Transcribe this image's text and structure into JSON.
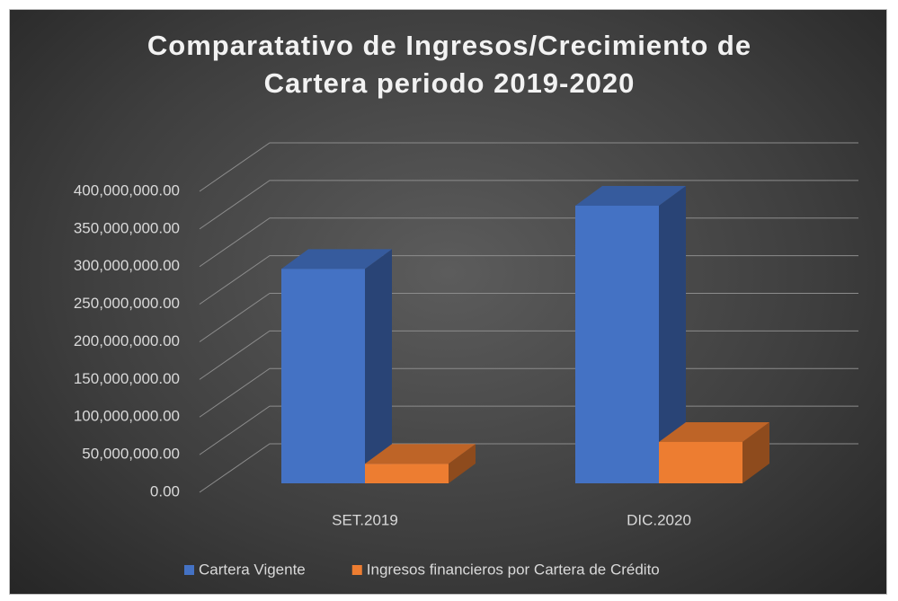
{
  "chart_data": {
    "type": "bar3d",
    "title": "Comparatativo de Ingresos/Crecimiento de Cartera periodo 2019-2020",
    "categories": [
      "SET.2019",
      "DIC.2020"
    ],
    "series": [
      {
        "name": "Cartera Vigente",
        "color": "#4472c4",
        "values": [
          285000000,
          369000000
        ]
      },
      {
        "name": "Ingresos financieros por Cartera de Crédito",
        "color": "#ed7d31",
        "values": [
          26000000,
          55000000
        ]
      }
    ],
    "ylim": [
      0,
      400000000
    ],
    "yticks": [
      {
        "value": 0,
        "label": "0.00"
      },
      {
        "value": 50000000,
        "label": "50,000,000.00"
      },
      {
        "value": 100000000,
        "label": "100,000,000.00"
      },
      {
        "value": 150000000,
        "label": "150,000,000.00"
      },
      {
        "value": 200000000,
        "label": "200,000,000.00"
      },
      {
        "value": 250000000,
        "label": "250,000,000.00"
      },
      {
        "value": 300000000,
        "label": "300,000,000.00"
      },
      {
        "value": 350000000,
        "label": "350,000,000.00"
      },
      {
        "value": 400000000,
        "label": "400,000,000.00"
      }
    ],
    "grid": true,
    "legend": "bottom"
  }
}
